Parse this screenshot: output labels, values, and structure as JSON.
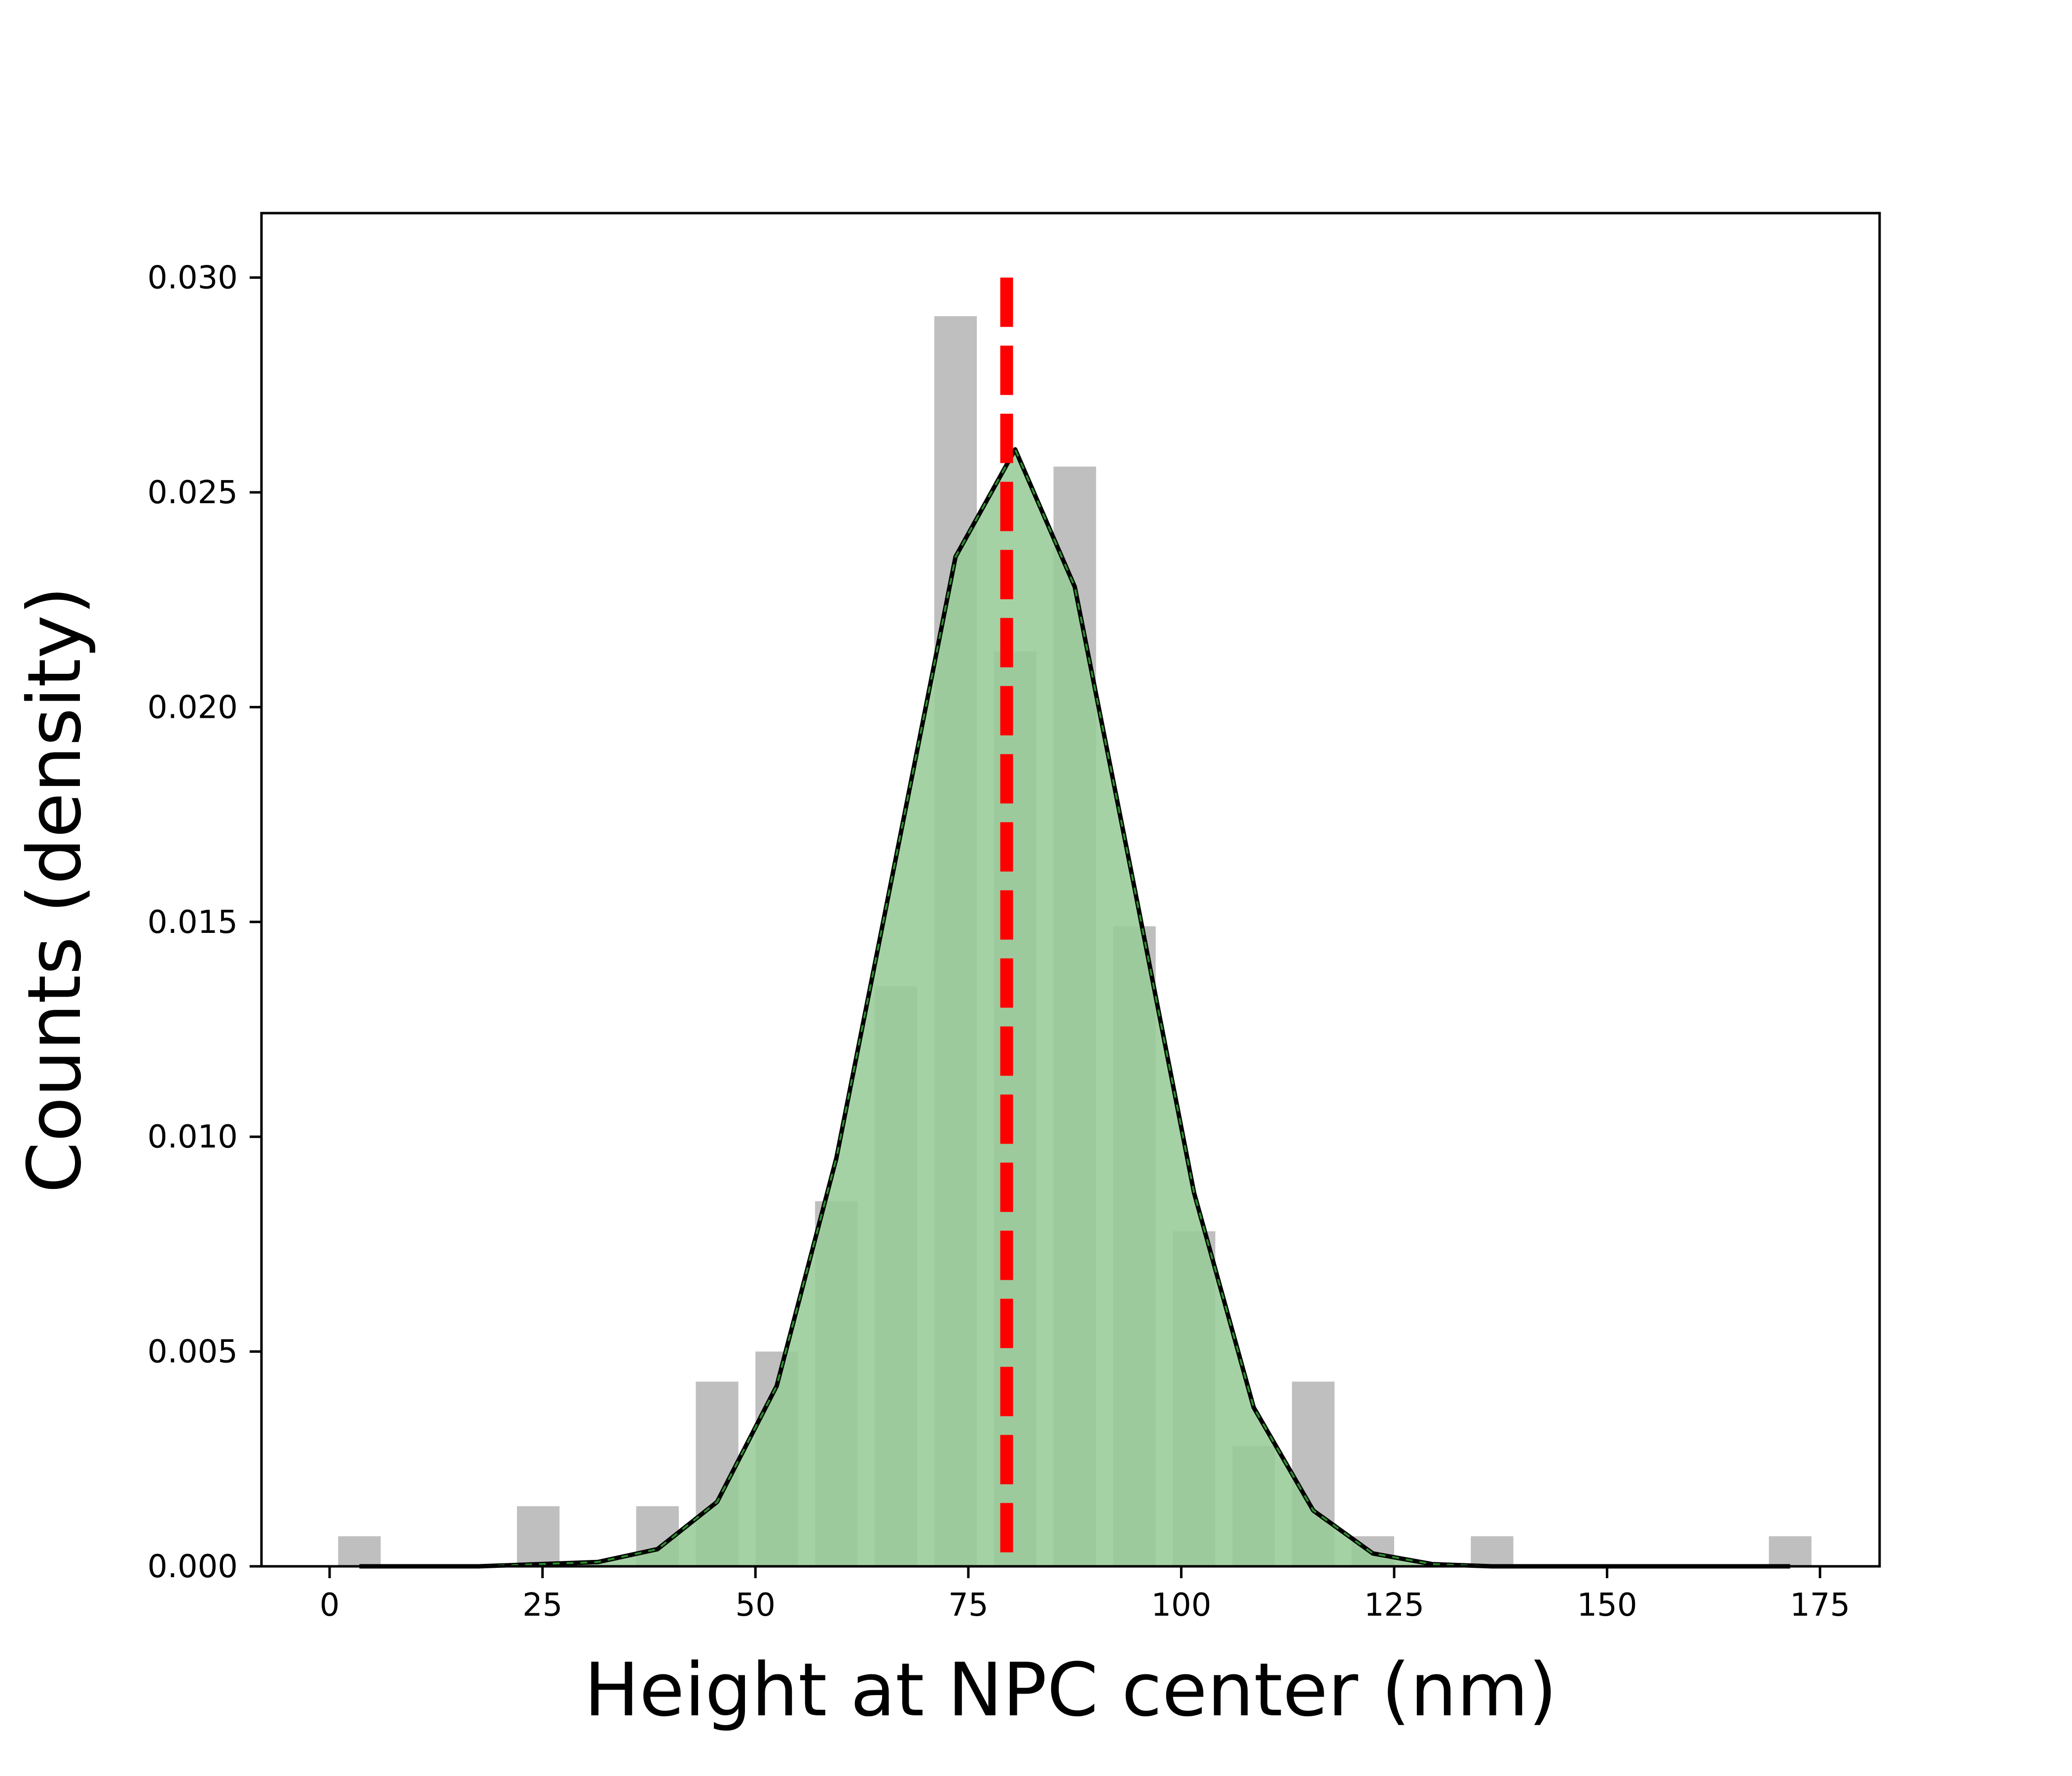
{
  "chart_data": {
    "type": "bar",
    "title": "",
    "xlabel": "Height at NPC center (nm)",
    "ylabel": "Counts (density)",
    "xlim": [
      -8,
      182
    ],
    "ylim": [
      0,
      0.0315
    ],
    "xticks": [
      0,
      25,
      50,
      75,
      100,
      125,
      150,
      175
    ],
    "yticks": [
      0.0,
      0.005,
      0.01,
      0.015,
      0.02,
      0.025,
      0.03
    ],
    "ytick_labels": [
      "0.000",
      "0.005",
      "0.010",
      "0.015",
      "0.020",
      "0.025",
      "0.030"
    ],
    "grid": false,
    "legend": "none",
    "histogram": {
      "bin_width": 5,
      "bins": [
        {
          "x": 3.5,
          "value": 0.0007
        },
        {
          "x": 24.5,
          "value": 0.0014
        },
        {
          "x": 38.5,
          "value": 0.0014
        },
        {
          "x": 45.5,
          "value": 0.0043
        },
        {
          "x": 52.5,
          "value": 0.005
        },
        {
          "x": 59.5,
          "value": 0.0085
        },
        {
          "x": 66.5,
          "value": 0.0135
        },
        {
          "x": 73.5,
          "value": 0.0291
        },
        {
          "x": 80.5,
          "value": 0.0213
        },
        {
          "x": 87.5,
          "value": 0.0256
        },
        {
          "x": 94.5,
          "value": 0.0149
        },
        {
          "x": 101.5,
          "value": 0.0078
        },
        {
          "x": 108.5,
          "value": 0.0028
        },
        {
          "x": 115.5,
          "value": 0.0043
        },
        {
          "x": 122.5,
          "value": 0.0007
        },
        {
          "x": 136.5,
          "value": 0.0007
        },
        {
          "x": 171.5,
          "value": 0.0007
        }
      ]
    },
    "density_curve": {
      "x": [
        3.5,
        10.5,
        17.5,
        24.5,
        31.5,
        38.5,
        45.5,
        52.5,
        59.5,
        66.5,
        73.5,
        80.5,
        87.5,
        94.5,
        101.5,
        108.5,
        115.5,
        122.5,
        129.5,
        136.5,
        143.5,
        150.5,
        157.5,
        164.5,
        171.5
      ],
      "y": [
        0.0,
        0.0,
        0.0,
        5e-05,
        0.0001,
        0.0004,
        0.0015,
        0.0042,
        0.0095,
        0.0165,
        0.0235,
        0.026,
        0.0228,
        0.0158,
        0.0087,
        0.0037,
        0.0013,
        0.0003,
        5e-05,
        0.0,
        0.0,
        0.0,
        0.0,
        0.0,
        0.0
      ]
    },
    "mean_line": {
      "x": 79.5
    },
    "colors": {
      "bars": "#bfbfbf",
      "fill": "#98cc98",
      "curve": "#000000",
      "curve_dash": "#2e8b2e",
      "mean_line": "#ff0000"
    }
  }
}
